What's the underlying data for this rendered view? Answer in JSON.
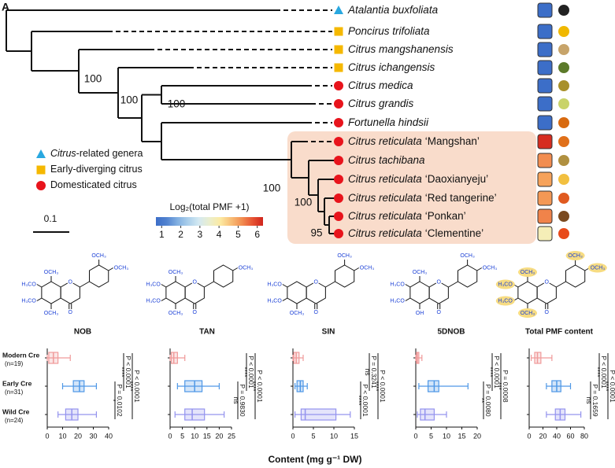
{
  "panel_label": "A",
  "tree": {
    "taxa": [
      {
        "name": "Atalantia buxfoliata",
        "marker": "triangle",
        "color": "#29a8e0",
        "pmf": 1.0
      },
      {
        "name": "Poncirus trifoliata",
        "marker": "square",
        "color": "#f5b800",
        "pmf": 1.0
      },
      {
        "name": "Citrus mangshanensis",
        "marker": "square",
        "color": "#f5b800",
        "pmf": 1.0
      },
      {
        "name": "Citrus ichangensis",
        "marker": "square",
        "color": "#f5b800",
        "pmf": 1.0
      },
      {
        "name": "Citrus medica",
        "marker": "circle",
        "color": "#e8141c",
        "pmf": 1.0
      },
      {
        "name": "Citrus grandis",
        "marker": "circle",
        "color": "#e8141c",
        "pmf": 1.0
      },
      {
        "name": "Fortunella hindsii",
        "marker": "circle",
        "color": "#e8141c",
        "pmf": 1.0
      },
      {
        "name": "Citrus reticulata",
        "cultivar": "‘Mangshan’",
        "marker": "circle",
        "color": "#e8141c",
        "pmf": 6.2
      },
      {
        "name": "Citrus tachibana",
        "marker": "circle",
        "color": "#e8141c",
        "pmf": 5.2
      },
      {
        "name": "Citrus reticulata",
        "cultivar": "‘Daoxianyeju’",
        "marker": "circle",
        "color": "#e8141c",
        "pmf": 5.0
      },
      {
        "name": "Citrus reticulata",
        "cultivar": "‘Red tangerine’",
        "marker": "circle",
        "color": "#e8141c",
        "pmf": 5.1
      },
      {
        "name": "Citrus reticulata",
        "cultivar": "‘Ponkan’",
        "marker": "circle",
        "color": "#e8141c",
        "pmf": 5.3
      },
      {
        "name": "Citrus reticulata",
        "cultivar": "‘Clementine’",
        "marker": "circle",
        "color": "#e8141c",
        "pmf": 3.8
      }
    ],
    "support": [
      100,
      100,
      100,
      100,
      100,
      95
    ],
    "legend": [
      {
        "italic": "Citrus",
        "text": "-related genera",
        "marker": "triangle",
        "color": "#29a8e0"
      },
      {
        "text": "Early-diverging citrus",
        "marker": "square",
        "color": "#f5b800"
      },
      {
        "text": "Domesticated citrus",
        "marker": "circle",
        "color": "#e8141c"
      }
    ],
    "scale_bar": 0.1,
    "colorbar": {
      "title": "Log₂(total PMF +1)",
      "lim": [
        0.7,
        6.3
      ],
      "ticks": [
        1,
        2,
        3,
        4,
        5,
        6
      ]
    }
  },
  "box_groups": {
    "names": [
      "Modern Cre",
      "Early Cre",
      "Wild Cre"
    ],
    "n_labels": [
      "(n=19)",
      "(n=31)",
      "(n=24)"
    ],
    "colors": [
      "#f09a9a",
      "#4f98e6",
      "#9493ee"
    ]
  },
  "xlabel": "Content (mg g⁻¹ DW)",
  "chart_data": [
    {
      "type": "box",
      "title": "NOB",
      "structure": {
        "labels": {
          "c8": "OCH₃",
          "c7": "H₃CO",
          "c6": "H₃CO",
          "c5": "OCH₃",
          "c3p": "OCH₃",
          "c4p": "OCH₃",
          "o1": "O",
          "c4": "O"
        }
      },
      "xlim": [
        0,
        40
      ],
      "xticks": [
        0,
        10,
        20,
        30,
        40
      ],
      "boxes": [
        {
          "min": 0,
          "q1": 1,
          "median": 4,
          "q3": 7,
          "max": 15
        },
        {
          "min": 10,
          "q1": 17,
          "median": 21,
          "q3": 24,
          "max": 32
        },
        {
          "min": 7,
          "q1": 12,
          "median": 16,
          "q3": 20,
          "max": 32
        }
      ],
      "comparisons": [
        {
          "p": "P = 0.0102",
          "stars": "*"
        },
        {
          "p": "P < 0.0001",
          "stars": "****"
        },
        {
          "p": "P < 0.0001",
          "stars": "****"
        }
      ]
    },
    {
      "type": "box",
      "title": "TAN",
      "structure": {
        "labels": {
          "c8": "OCH₃",
          "c7": "H₃CO",
          "c6": "H₃CO",
          "c5": "OCH₃",
          "c4p": "OCH₃",
          "o1": "O",
          "c4": "O"
        }
      },
      "xlim": [
        0,
        25
      ],
      "xticks": [
        0,
        5,
        10,
        15,
        20,
        25
      ],
      "boxes": [
        {
          "min": 0,
          "q1": 0.5,
          "median": 1.5,
          "q3": 3,
          "max": 6
        },
        {
          "min": 3,
          "q1": 6,
          "median": 10,
          "q3": 13,
          "max": 20
        },
        {
          "min": 2,
          "q1": 6,
          "median": 9,
          "q3": 14,
          "max": 22
        }
      ],
      "comparisons": [
        {
          "p": "P = 0.9830",
          "stars": "ns"
        },
        {
          "p": "P < 0.0001",
          "stars": "****"
        },
        {
          "p": "P < 0.0001",
          "stars": "****"
        }
      ]
    },
    {
      "type": "box",
      "title": "SIN",
      "structure": {
        "labels": {
          "c7": "H₃CO",
          "c6": "H₃CO",
          "c5": "OCH₃",
          "c3p": "OCH₃",
          "c4p": "OCH₃",
          "o1": "O",
          "c4": "O"
        }
      },
      "xlim": [
        0,
        15
      ],
      "xticks": [
        0,
        5,
        10,
        15
      ],
      "boxes": [
        {
          "min": 0,
          "q1": 0.2,
          "median": 0.8,
          "q3": 1.5,
          "max": 2.5
        },
        {
          "min": 0.5,
          "q1": 1,
          "median": 1.8,
          "q3": 2.5,
          "max": 3.5
        },
        {
          "min": 0.5,
          "q1": 2,
          "median": 3,
          "q3": 10.5,
          "max": 14
        }
      ],
      "comparisons": [
        {
          "p": "P < 0.0001",
          "stars": "****"
        },
        {
          "p": "P = 0.3241",
          "stars": "ns"
        },
        {
          "p": "P < 0.0001",
          "stars": "****"
        }
      ]
    },
    {
      "type": "box",
      "title": "5DNOB",
      "structure": {
        "labels": {
          "c8": "OCH₃",
          "c7": "H₃CO",
          "c6": "H₃CO",
          "c5": "OH",
          "c3p": "OCH₃",
          "c4p": "OCH₃",
          "o1": "O",
          "c4": "O"
        }
      },
      "xlim": [
        0,
        20
      ],
      "xticks": [
        0,
        5,
        10,
        15,
        20
      ],
      "boxes": [
        {
          "min": 0,
          "q1": 0.2,
          "median": 0.5,
          "q3": 1,
          "max": 2
        },
        {
          "min": 1,
          "q1": 4,
          "median": 6,
          "q3": 7.5,
          "max": 17
        },
        {
          "min": 0.5,
          "q1": 1.5,
          "median": 3,
          "q3": 6,
          "max": 10
        }
      ],
      "comparisons": [
        {
          "p": "P = 0.0080",
          "stars": "**"
        },
        {
          "p": "P < 0.0001",
          "stars": "****"
        },
        {
          "p": "P = 0.0008",
          "stars": "***"
        }
      ]
    },
    {
      "type": "box",
      "title": "Total PMF content",
      "structure": {
        "labels": {
          "c8": "OCH₃",
          "c7": "H₃CO",
          "c6": "H₃CO",
          "c5": "OCH₃",
          "c3p": "OCH₃",
          "c4p": "OCH₃",
          "o1": "O",
          "c4": "O"
        },
        "highlight_color": "#f7dc82"
      },
      "xlim": [
        0,
        80
      ],
      "xticks": [
        0,
        20,
        40,
        60,
        80
      ],
      "boxes": [
        {
          "min": 3,
          "q1": 8,
          "median": 12,
          "q3": 17,
          "max": 33
        },
        {
          "min": 25,
          "q1": 33,
          "median": 40,
          "q3": 46,
          "max": 60
        },
        {
          "min": 25,
          "q1": 38,
          "median": 45,
          "q3": 52,
          "max": 75
        }
      ],
      "comparisons": [
        {
          "p": "P = 0.1659",
          "stars": "ns"
        },
        {
          "p": "P < 0.0001",
          "stars": "****"
        },
        {
          "p": "P < 0.0001",
          "stars": "****"
        }
      ]
    }
  ]
}
